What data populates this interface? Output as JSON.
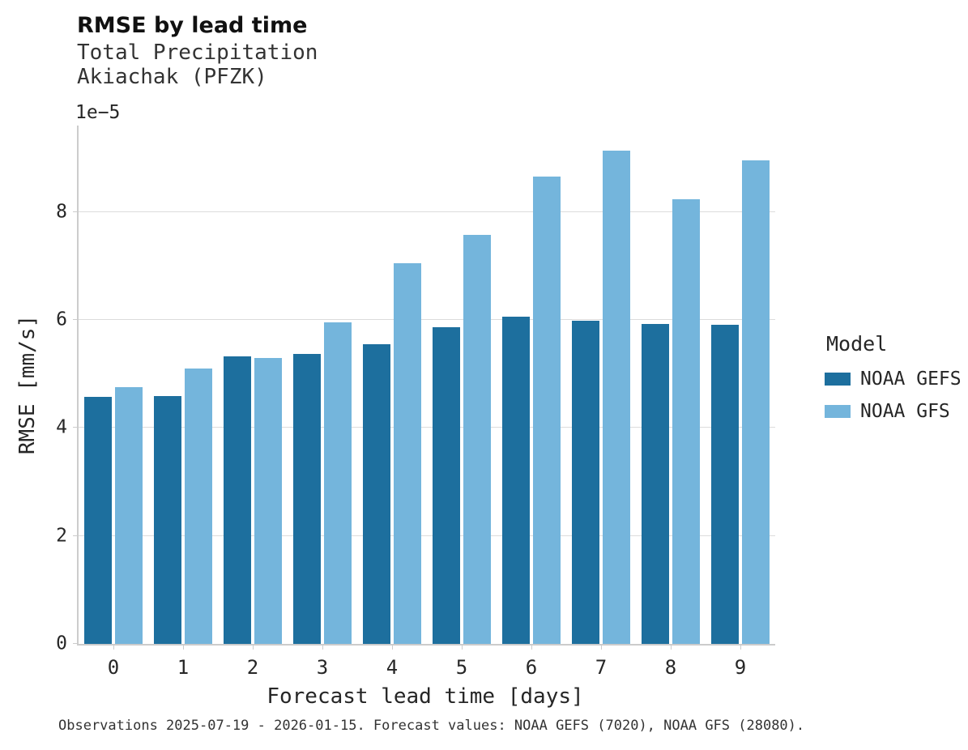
{
  "title": "RMSE by lead time",
  "subtitle_line1": "Total Precipitation",
  "subtitle_line2": "Akiachak (PFZK)",
  "offset_text": "1e−5",
  "caption": "Observations 2025-07-19 - 2026-01-15. Forecast values: NOAA GEFS (7020), NOAA GFS (28080).",
  "legend": {
    "title": "Model",
    "entries": [
      {
        "label": "NOAA GEFS",
        "color": "#1d6f9e"
      },
      {
        "label": "NOAA GFS",
        "color": "#74b5dc"
      }
    ]
  },
  "colors": {
    "gefs": "#1d6f9e",
    "gfs": "#74b5dc",
    "grid": "#dcdcdc",
    "spine": "#cccccc"
  },
  "chart_data": {
    "type": "bar",
    "title": "RMSE by lead time",
    "subtitle": [
      "Total Precipitation",
      "Akiachak (PFZK)"
    ],
    "xlabel": "Forecast lead time [days]",
    "ylabel": "RMSE [mm/s]",
    "y_unit_offset": "1e-5",
    "categories": [
      "0",
      "1",
      "2",
      "3",
      "4",
      "5",
      "6",
      "7",
      "8",
      "9"
    ],
    "series": [
      {
        "name": "NOAA GEFS",
        "color": "#1d6f9e",
        "values": [
          4.58,
          4.59,
          5.33,
          5.37,
          5.55,
          5.87,
          6.06,
          5.99,
          5.93,
          5.91
        ]
      },
      {
        "name": "NOAA GFS",
        "color": "#74b5dc",
        "values": [
          4.76,
          5.1,
          5.3,
          5.96,
          7.05,
          7.58,
          8.66,
          9.13,
          8.23,
          8.95
        ]
      }
    ],
    "value_scale": "values are in units of 1e-5 mm/s",
    "ylim": [
      0,
      9.6
    ],
    "yticks": [
      0,
      2,
      4,
      6,
      8
    ],
    "grid": true,
    "legend_position": "right"
  }
}
